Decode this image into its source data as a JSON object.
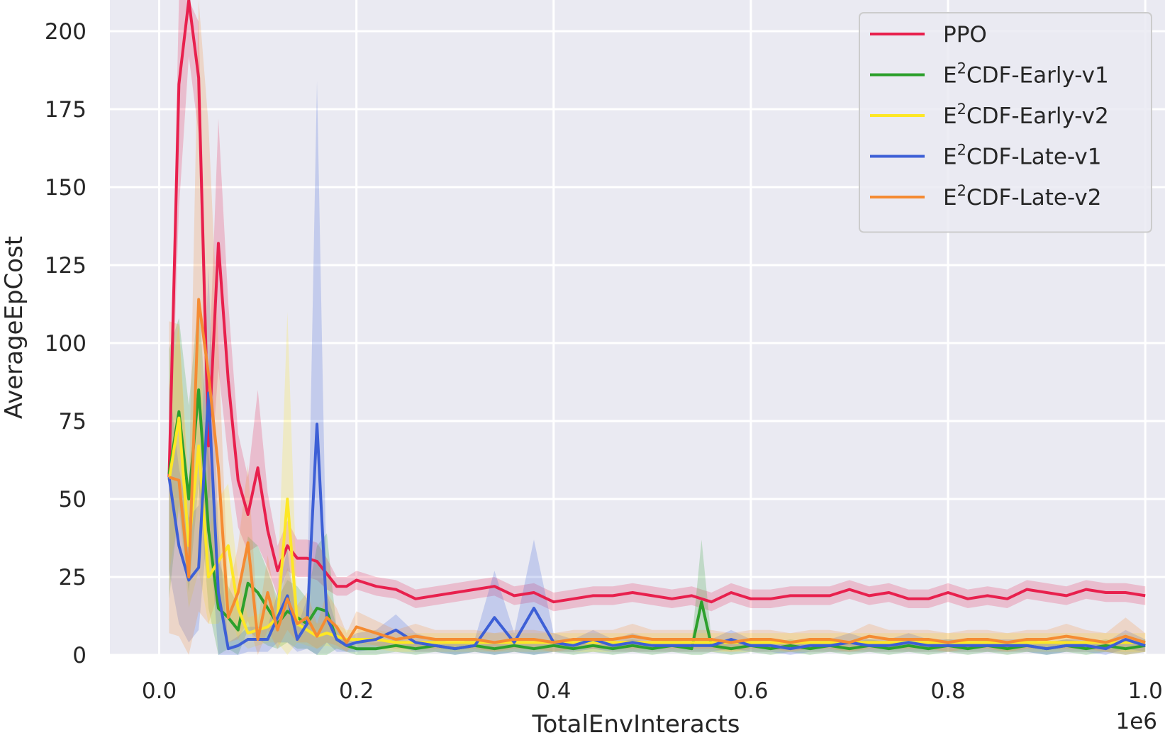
{
  "chart_data": {
    "type": "line",
    "xlabel": "TotalEnvInteracts",
    "ylabel": "AverageEpCost",
    "x_offset_label": "1e6",
    "xlim": [
      -0.05,
      1.02
    ],
    "ylim": [
      0,
      210
    ],
    "x_ticks": [
      0.0,
      0.2,
      0.4,
      0.6,
      0.8,
      1.0
    ],
    "x_tick_labels": [
      "0.0",
      "0.2",
      "0.4",
      "0.6",
      "0.8",
      "1.0"
    ],
    "y_ticks": [
      0,
      25,
      50,
      75,
      100,
      125,
      150,
      175,
      200
    ],
    "y_tick_labels": [
      "0",
      "25",
      "50",
      "75",
      "100",
      "125",
      "150",
      "175",
      "200"
    ],
    "grid": true,
    "legend_position": "top-right",
    "legend": [
      {
        "base": "PPO",
        "sup": "",
        "rest": ""
      },
      {
        "base": "E",
        "sup": "2",
        "rest": "CDF-Early-v1"
      },
      {
        "base": "E",
        "sup": "2",
        "rest": "CDF-Early-v2"
      },
      {
        "base": "E",
        "sup": "2",
        "rest": "CDF-Late-v1"
      },
      {
        "base": "E",
        "sup": "2",
        "rest": "CDF-Late-v2"
      }
    ],
    "series": [
      {
        "name": "PPO",
        "color": "#e8204d",
        "x": [
          0.01,
          0.02,
          0.03,
          0.04,
          0.05,
          0.06,
          0.07,
          0.08,
          0.09,
          0.1,
          0.11,
          0.12,
          0.13,
          0.14,
          0.15,
          0.16,
          0.17,
          0.18,
          0.19,
          0.2,
          0.22,
          0.24,
          0.26,
          0.28,
          0.3,
          0.32,
          0.34,
          0.36,
          0.38,
          0.4,
          0.42,
          0.44,
          0.46,
          0.48,
          0.5,
          0.52,
          0.54,
          0.56,
          0.58,
          0.6,
          0.62,
          0.64,
          0.66,
          0.68,
          0.7,
          0.72,
          0.74,
          0.76,
          0.78,
          0.8,
          0.82,
          0.84,
          0.86,
          0.88,
          0.9,
          0.92,
          0.94,
          0.96,
          0.98,
          1.0
        ],
        "values": [
          57,
          183,
          212,
          185,
          67,
          132,
          88,
          56,
          45,
          60,
          40,
          27,
          35,
          31,
          31,
          30,
          26,
          22,
          22,
          24,
          22,
          21,
          18,
          19,
          20,
          21,
          22,
          19,
          20,
          17,
          18,
          19,
          19,
          20,
          19,
          18,
          19,
          17,
          20,
          18,
          18,
          19,
          19,
          19,
          21,
          19,
          20,
          18,
          18,
          20,
          18,
          19,
          18,
          21,
          20,
          19,
          21,
          20,
          20,
          19
        ],
        "band": [
          8,
          40,
          20,
          18,
          20,
          40,
          25,
          15,
          12,
          25,
          12,
          8,
          8,
          6,
          6,
          6,
          5,
          3,
          3,
          3,
          3,
          3,
          3,
          3,
          3,
          3,
          3,
          3,
          3,
          3,
          3,
          3,
          3,
          3,
          3,
          3,
          3,
          3,
          3,
          3,
          3,
          3,
          3,
          3,
          3,
          3,
          3,
          3,
          3,
          3,
          3,
          3,
          3,
          3,
          3,
          3,
          3,
          3,
          3,
          3
        ]
      },
      {
        "name": "E²CDF-Early-v1",
        "color": "#2ca02c",
        "x": [
          0.01,
          0.02,
          0.03,
          0.04,
          0.05,
          0.06,
          0.07,
          0.08,
          0.09,
          0.1,
          0.11,
          0.12,
          0.13,
          0.14,
          0.15,
          0.16,
          0.17,
          0.18,
          0.19,
          0.2,
          0.22,
          0.24,
          0.26,
          0.28,
          0.3,
          0.32,
          0.34,
          0.36,
          0.38,
          0.4,
          0.42,
          0.44,
          0.46,
          0.48,
          0.5,
          0.52,
          0.54,
          0.55,
          0.56,
          0.58,
          0.6,
          0.62,
          0.64,
          0.66,
          0.68,
          0.7,
          0.72,
          0.74,
          0.76,
          0.78,
          0.8,
          0.82,
          0.84,
          0.86,
          0.88,
          0.9,
          0.92,
          0.94,
          0.96,
          0.98,
          1.0
        ],
        "values": [
          58,
          78,
          50,
          85,
          40,
          15,
          12,
          8,
          23,
          20,
          15,
          10,
          14,
          12,
          10,
          15,
          14,
          5,
          3,
          2,
          2,
          3,
          2,
          3,
          2,
          3,
          2,
          3,
          2,
          3,
          2,
          3,
          2,
          3,
          2,
          3,
          2,
          17,
          3,
          2,
          3,
          2,
          3,
          2,
          3,
          2,
          3,
          2,
          3,
          2,
          3,
          2,
          3,
          2,
          3,
          2,
          3,
          2,
          3,
          2,
          3
        ],
        "band": [
          40,
          30,
          30,
          30,
          25,
          15,
          10,
          8,
          15,
          15,
          12,
          8,
          10,
          10,
          8,
          20,
          25,
          3,
          2,
          2,
          2,
          2,
          2,
          2,
          2,
          2,
          2,
          2,
          2,
          2,
          2,
          2,
          2,
          2,
          2,
          2,
          2,
          20,
          2,
          2,
          2,
          2,
          2,
          2,
          2,
          2,
          2,
          2,
          2,
          2,
          2,
          2,
          2,
          2,
          2,
          2,
          2,
          2,
          2,
          2,
          2
        ]
      },
      {
        "name": "E²CDF-Early-v2",
        "color": "#fde725",
        "x": [
          0.01,
          0.02,
          0.03,
          0.04,
          0.05,
          0.06,
          0.07,
          0.08,
          0.09,
          0.1,
          0.11,
          0.12,
          0.13,
          0.14,
          0.15,
          0.16,
          0.17,
          0.18,
          0.19,
          0.2,
          0.22,
          0.24,
          0.26,
          0.28,
          0.3,
          0.32,
          0.34,
          0.36,
          0.38,
          0.4,
          0.42,
          0.44,
          0.46,
          0.48,
          0.5,
          0.52,
          0.54,
          0.56,
          0.58,
          0.6,
          0.62,
          0.64,
          0.66,
          0.68,
          0.7,
          0.72,
          0.74,
          0.76,
          0.78,
          0.8,
          0.82,
          0.84,
          0.86,
          0.88,
          0.9,
          0.92,
          0.94,
          0.96,
          0.98,
          1.0
        ],
        "values": [
          56,
          76,
          35,
          67,
          25,
          30,
          35,
          15,
          7,
          8,
          9,
          12,
          50,
          10,
          8,
          6,
          7,
          6,
          5,
          5,
          5,
          4,
          4,
          4,
          4,
          4,
          4,
          4,
          4,
          4,
          4,
          4,
          4,
          4,
          4,
          4,
          4,
          4,
          4,
          4,
          4,
          4,
          4,
          4,
          4,
          4,
          4,
          4,
          4,
          4,
          4,
          4,
          4,
          4,
          4,
          4,
          4,
          4,
          4,
          4
        ],
        "band": [
          30,
          30,
          20,
          40,
          15,
          20,
          20,
          10,
          5,
          5,
          5,
          8,
          60,
          6,
          5,
          4,
          4,
          4,
          3,
          3,
          3,
          3,
          3,
          3,
          3,
          3,
          3,
          3,
          3,
          3,
          3,
          3,
          3,
          3,
          3,
          3,
          3,
          3,
          3,
          3,
          3,
          3,
          3,
          3,
          3,
          3,
          3,
          3,
          3,
          3,
          3,
          3,
          3,
          3,
          3,
          3,
          3,
          3,
          3,
          3
        ]
      },
      {
        "name": "E²CDF-Late-v1",
        "color": "#3d5fd6",
        "x": [
          0.01,
          0.02,
          0.03,
          0.04,
          0.05,
          0.06,
          0.07,
          0.08,
          0.09,
          0.1,
          0.11,
          0.12,
          0.13,
          0.14,
          0.15,
          0.16,
          0.17,
          0.18,
          0.19,
          0.2,
          0.22,
          0.24,
          0.26,
          0.28,
          0.3,
          0.32,
          0.34,
          0.36,
          0.38,
          0.4,
          0.42,
          0.44,
          0.46,
          0.48,
          0.5,
          0.52,
          0.54,
          0.56,
          0.58,
          0.6,
          0.62,
          0.64,
          0.66,
          0.68,
          0.7,
          0.72,
          0.74,
          0.76,
          0.78,
          0.8,
          0.82,
          0.84,
          0.86,
          0.88,
          0.9,
          0.92,
          0.94,
          0.96,
          0.98,
          1.0
        ],
        "values": [
          57,
          35,
          24,
          28,
          84,
          20,
          2,
          3,
          5,
          5,
          5,
          12,
          19,
          5,
          10,
          74,
          12,
          5,
          3,
          4,
          5,
          8,
          4,
          3,
          2,
          3,
          12,
          4,
          15,
          4,
          3,
          5,
          3,
          4,
          3,
          3,
          3,
          3,
          5,
          3,
          3,
          2,
          3,
          3,
          4,
          3,
          3,
          4,
          3,
          3,
          3,
          3,
          3,
          3,
          2,
          3,
          3,
          2,
          5,
          3
        ],
        "band": [
          30,
          25,
          20,
          20,
          40,
          20,
          2,
          3,
          4,
          4,
          4,
          8,
          15,
          4,
          8,
          110,
          8,
          4,
          2,
          3,
          3,
          5,
          3,
          2,
          2,
          2,
          15,
          3,
          22,
          3,
          2,
          3,
          2,
          3,
          2,
          2,
          2,
          2,
          3,
          2,
          2,
          2,
          2,
          2,
          3,
          2,
          2,
          3,
          2,
          2,
          2,
          2,
          2,
          2,
          2,
          2,
          2,
          2,
          3,
          2
        ]
      },
      {
        "name": "E²CDF-Late-v2",
        "color": "#f58b32",
        "x": [
          0.01,
          0.02,
          0.03,
          0.04,
          0.05,
          0.06,
          0.07,
          0.08,
          0.09,
          0.1,
          0.11,
          0.12,
          0.13,
          0.14,
          0.15,
          0.16,
          0.17,
          0.18,
          0.19,
          0.2,
          0.22,
          0.24,
          0.26,
          0.28,
          0.3,
          0.32,
          0.34,
          0.36,
          0.38,
          0.4,
          0.42,
          0.44,
          0.46,
          0.48,
          0.5,
          0.52,
          0.54,
          0.56,
          0.58,
          0.6,
          0.62,
          0.64,
          0.66,
          0.68,
          0.7,
          0.72,
          0.74,
          0.76,
          0.78,
          0.8,
          0.82,
          0.84,
          0.86,
          0.88,
          0.9,
          0.92,
          0.94,
          0.96,
          0.98,
          1.0
        ],
        "values": [
          57,
          56,
          25,
          114,
          90,
          60,
          12,
          20,
          36,
          5,
          20,
          8,
          18,
          10,
          12,
          6,
          12,
          9,
          4,
          9,
          7,
          5,
          6,
          5,
          5,
          5,
          4,
          5,
          5,
          4,
          5,
          5,
          5,
          6,
          5,
          5,
          5,
          5,
          4,
          5,
          5,
          4,
          5,
          5,
          4,
          6,
          5,
          5,
          5,
          4,
          5,
          5,
          4,
          5,
          5,
          6,
          5,
          4,
          6,
          4
        ],
        "band": [
          50,
          50,
          25,
          100,
          80,
          40,
          8,
          15,
          25,
          5,
          12,
          6,
          10,
          6,
          8,
          4,
          8,
          6,
          3,
          5,
          4,
          3,
          4,
          3,
          3,
          3,
          3,
          3,
          3,
          3,
          3,
          3,
          3,
          4,
          3,
          3,
          3,
          3,
          3,
          3,
          3,
          3,
          3,
          3,
          3,
          4,
          3,
          3,
          3,
          3,
          3,
          3,
          3,
          3,
          3,
          4,
          3,
          3,
          6,
          3
        ]
      }
    ]
  }
}
